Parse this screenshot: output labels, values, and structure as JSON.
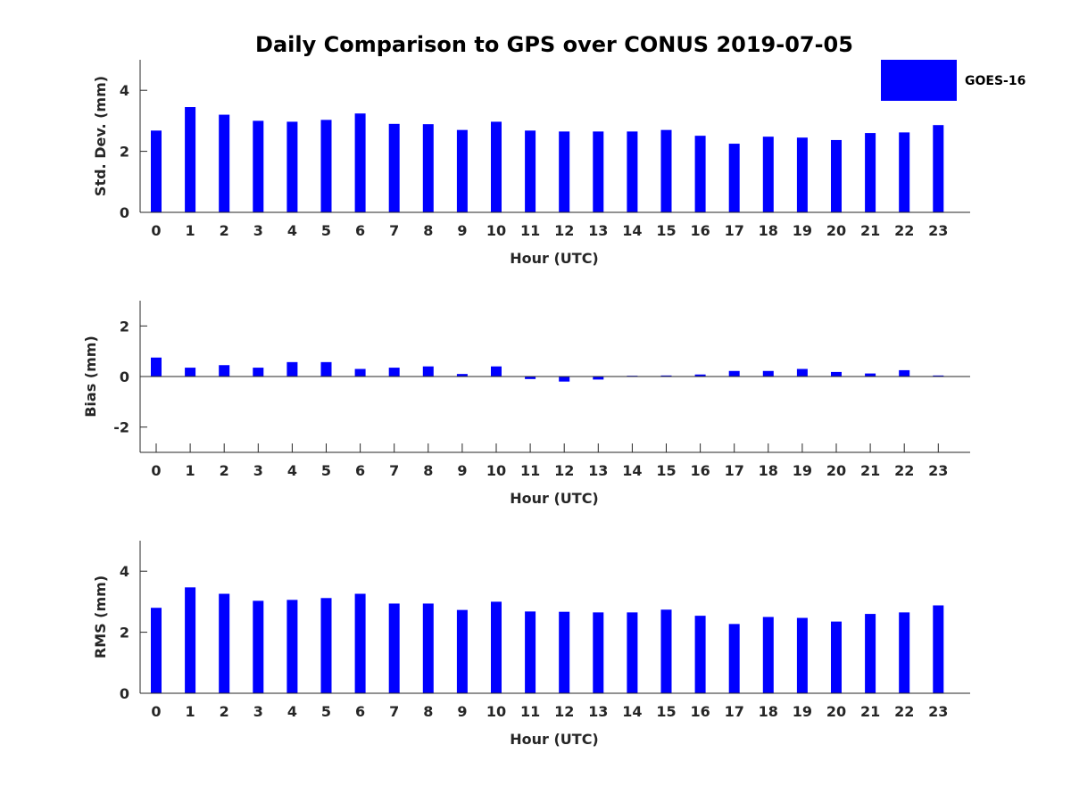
{
  "figure": {
    "title": "Daily Comparison to GPS over CONUS 2019-07-05"
  },
  "legend": {
    "label": "GOES-16",
    "color": "#0000ff"
  },
  "chart_data": [
    {
      "type": "bar",
      "title": "Daily Comparison to GPS over CONUS 2019-07-05",
      "xlabel": "Hour (UTC)",
      "ylabel": "Std. Dev. (mm)",
      "categories": [
        "0",
        "1",
        "2",
        "3",
        "4",
        "5",
        "6",
        "7",
        "8",
        "9",
        "10",
        "11",
        "12",
        "13",
        "14",
        "15",
        "16",
        "17",
        "18",
        "19",
        "20",
        "21",
        "22",
        "23"
      ],
      "yticks": [
        "0",
        "2",
        "4"
      ],
      "ytick_values": [
        0,
        2,
        4
      ],
      "ylim": [
        0,
        5
      ],
      "xticks_inside": false,
      "series": [
        {
          "name": "GOES-16",
          "color": "#0000ff",
          "values": [
            2.68,
            3.45,
            3.2,
            3.0,
            2.97,
            3.03,
            3.24,
            2.9,
            2.89,
            2.7,
            2.97,
            2.68,
            2.65,
            2.65,
            2.65,
            2.7,
            2.51,
            2.25,
            2.48,
            2.45,
            2.37,
            2.6,
            2.62,
            2.86
          ]
        }
      ]
    },
    {
      "type": "bar",
      "xlabel": "Hour (UTC)",
      "ylabel": "Bias (mm)",
      "categories": [
        "0",
        "1",
        "2",
        "3",
        "4",
        "5",
        "6",
        "7",
        "8",
        "9",
        "10",
        "11",
        "12",
        "13",
        "14",
        "15",
        "16",
        "17",
        "18",
        "19",
        "20",
        "21",
        "22",
        "23"
      ],
      "yticks": [
        "-2",
        "0",
        "2"
      ],
      "ytick_values": [
        -2,
        0,
        2
      ],
      "ylim": [
        -3,
        3
      ],
      "xticks_inside": true,
      "series": [
        {
          "name": "GOES-16",
          "color": "#0000ff",
          "values": [
            0.75,
            0.35,
            0.45,
            0.35,
            0.57,
            0.57,
            0.3,
            0.35,
            0.4,
            0.1,
            0.4,
            -0.1,
            -0.2,
            -0.12,
            0.03,
            0.04,
            0.08,
            0.22,
            0.22,
            0.3,
            0.18,
            0.12,
            0.25,
            0.04
          ]
        }
      ]
    },
    {
      "type": "bar",
      "xlabel": "Hour (UTC)",
      "ylabel": "RMS (mm)",
      "categories": [
        "0",
        "1",
        "2",
        "3",
        "4",
        "5",
        "6",
        "7",
        "8",
        "9",
        "10",
        "11",
        "12",
        "13",
        "14",
        "15",
        "16",
        "17",
        "18",
        "19",
        "20",
        "21",
        "22",
        "23"
      ],
      "yticks": [
        "0",
        "2",
        "4"
      ],
      "ytick_values": [
        0,
        2,
        4
      ],
      "ylim": [
        0,
        5
      ],
      "xticks_inside": false,
      "series": [
        {
          "name": "GOES-16",
          "color": "#0000ff",
          "values": [
            2.8,
            3.47,
            3.26,
            3.03,
            3.06,
            3.12,
            3.26,
            2.94,
            2.94,
            2.73,
            3.0,
            2.68,
            2.67,
            2.65,
            2.65,
            2.74,
            2.54,
            2.27,
            2.5,
            2.47,
            2.35,
            2.6,
            2.65,
            2.88
          ]
        }
      ]
    }
  ]
}
